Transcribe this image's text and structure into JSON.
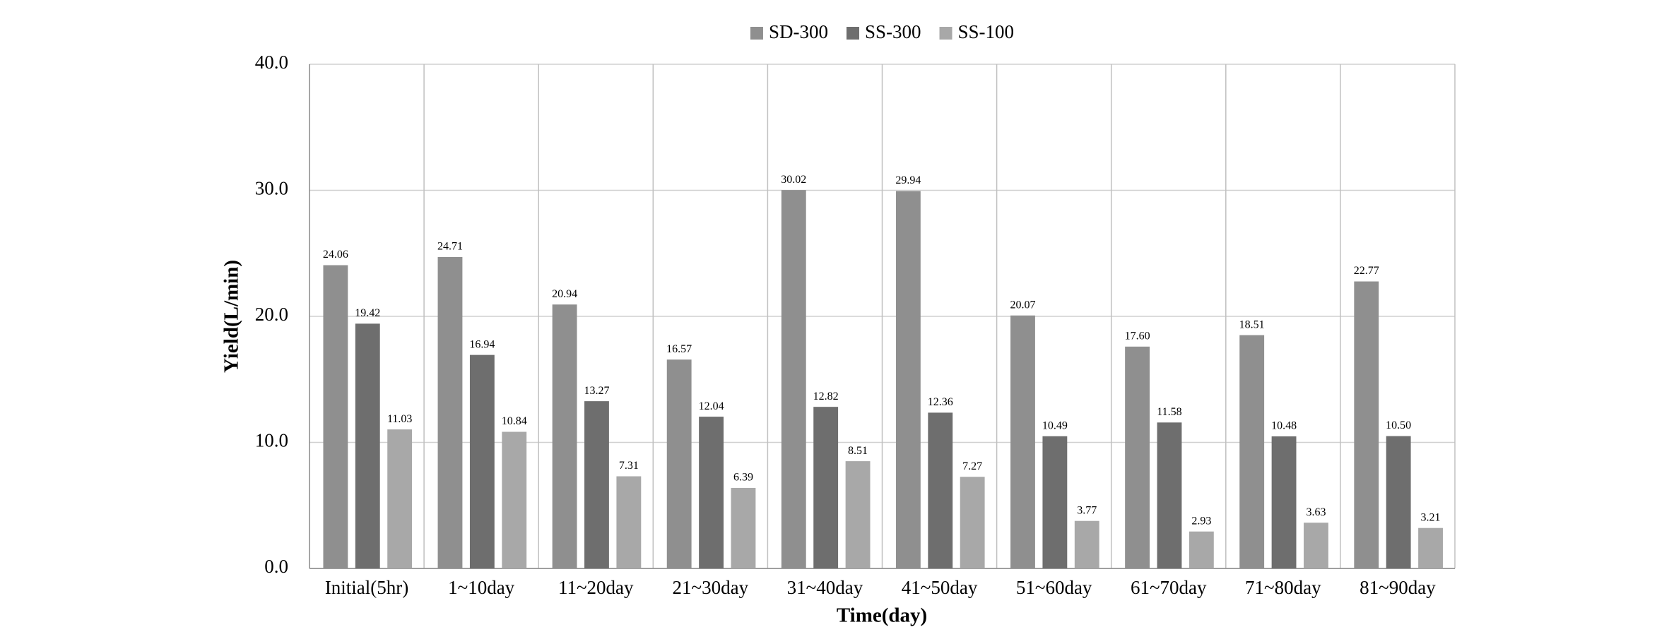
{
  "chart_data": {
    "type": "bar",
    "categories": [
      "Initial(5hr)",
      "1~10day",
      "11~20day",
      "21~30day",
      "31~40day",
      "41~50day",
      "51~60day",
      "61~70day",
      "71~80day",
      "81~90day"
    ],
    "series": [
      {
        "name": "SD-300",
        "color": "#8f8f8f",
        "values": [
          24.06,
          24.71,
          20.94,
          16.57,
          30.02,
          29.94,
          20.07,
          17.6,
          18.51,
          22.77
        ],
        "value_labels": [
          "24.06",
          "24.71",
          "20.94",
          "16.57",
          "30.02",
          "29.94",
          "20.07",
          "17.60",
          "18.51",
          "22.77"
        ]
      },
      {
        "name": "SS-300",
        "color": "#6e6e6e",
        "values": [
          19.42,
          16.94,
          13.27,
          12.04,
          12.82,
          12.36,
          10.49,
          11.58,
          10.48,
          10.5
        ],
        "value_labels": [
          "19.42",
          "16.94",
          "13.27",
          "12.04",
          "12.82",
          "12.36",
          "10.49",
          "11.58",
          "10.48",
          "10.50"
        ]
      },
      {
        "name": "SS-100",
        "color": "#a8a8a8",
        "values": [
          11.03,
          10.84,
          7.31,
          6.39,
          8.51,
          7.27,
          3.77,
          2.93,
          3.63,
          3.21
        ],
        "value_labels": [
          "11.03",
          "10.84",
          "7.31",
          "6.39",
          "8.51",
          "7.27",
          "3.77",
          "2.93",
          "3.63",
          "3.21"
        ]
      }
    ],
    "x_label": "Time(day)",
    "y_label": "Yield(L/min)",
    "ylim": [
      0,
      40
    ],
    "yticks": [
      {
        "value": 0,
        "label": "0.0"
      },
      {
        "value": 10,
        "label": "10.0"
      },
      {
        "value": 20,
        "label": "20.0"
      },
      {
        "value": 30,
        "label": "30.0"
      },
      {
        "value": 40,
        "label": "40.0"
      }
    ],
    "grid": true,
    "legend": "top"
  }
}
